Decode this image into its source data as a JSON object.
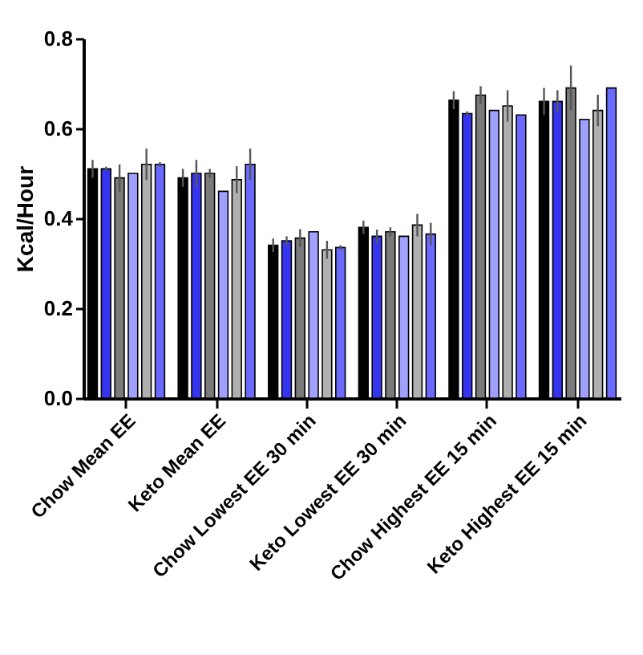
{
  "chart_data": {
    "type": "bar",
    "ylabel": "Kcal/Hour",
    "categories": [
      "Chow Mean EE",
      "Keto Mean EE",
      "Chow Lowest EE 30 min",
      "Keto Lowest EE 30 min",
      "Chow Highest EE 15 min",
      "Keto Highest EE 15 min"
    ],
    "series": [
      {
        "color": "#000000",
        "values": [
          0.51,
          0.49,
          0.34,
          0.38,
          0.663,
          0.66
        ],
        "errors": [
          0.02,
          0.02,
          0.015,
          0.015,
          0.02,
          0.03
        ]
      },
      {
        "color": "#3535f0",
        "values": [
          0.51,
          0.5,
          0.35,
          0.36,
          0.633,
          0.66
        ],
        "errors": [
          0.005,
          0.03,
          0.01,
          0.015,
          0.005,
          0.025
        ]
      },
      {
        "color": "#7a7a7a",
        "values": [
          0.49,
          0.5,
          0.356,
          0.37,
          0.674,
          0.69
        ],
        "errors": [
          0.03,
          0.01,
          0.02,
          0.01,
          0.02,
          0.05
        ]
      },
      {
        "color": "#a0a0ff",
        "values": [
          0.5,
          0.46,
          0.37,
          0.36,
          0.64,
          0.62
        ],
        "errors": [
          null,
          null,
          null,
          null,
          null,
          null
        ]
      },
      {
        "color": "#b0b0b0",
        "values": [
          0.52,
          0.486,
          0.33,
          0.385,
          0.65,
          0.64
        ],
        "errors": [
          0.035,
          0.03,
          0.02,
          0.025,
          0.035,
          0.035
        ]
      },
      {
        "color": "#6a6aff",
        "values": [
          0.52,
          0.52,
          0.335,
          0.365,
          0.63,
          0.69
        ],
        "errors": [
          0.005,
          0.035,
          0.005,
          0.025,
          null,
          null
        ]
      }
    ],
    "ylim": [
      0,
      0.8
    ],
    "yticks": [
      {
        "value": 0,
        "label": "0.0"
      },
      {
        "value": 0.2,
        "label": "0.2"
      },
      {
        "value": 0.4,
        "label": "0.4"
      },
      {
        "value": 0.6,
        "label": "0.6"
      },
      {
        "value": 0.8,
        "label": "0.8"
      }
    ],
    "grid": false,
    "legend": false
  }
}
